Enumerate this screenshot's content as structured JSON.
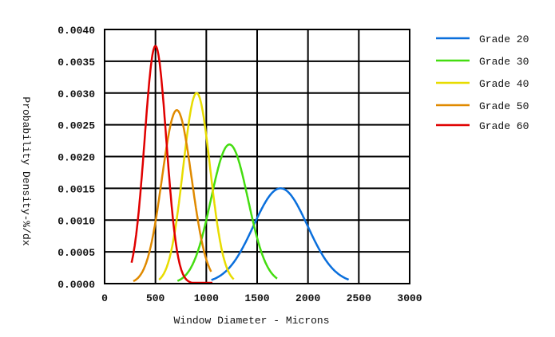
{
  "chart_data": {
    "type": "line",
    "title": "",
    "xlabel": "Window Diameter - Microns",
    "ylabel": "Probability Density-%/dx",
    "xlim": [
      0,
      3000
    ],
    "ylim": [
      0,
      0.004
    ],
    "xticks": [
      0,
      500,
      1000,
      1500,
      2000,
      2500,
      3000
    ],
    "xtick_labels": [
      "0",
      "500",
      "1000",
      "1500",
      "2000",
      "2500",
      "3000"
    ],
    "yticks": [
      0,
      0.0005,
      0.001,
      0.0015,
      0.002,
      0.0025,
      0.003,
      0.0035,
      0.004
    ],
    "ytick_labels": [
      "0.0000",
      "0.0005",
      "0.0010",
      "0.0015",
      "0.0020",
      "0.0025",
      "0.0030",
      "0.0035",
      "0.0040"
    ],
    "grid": true,
    "legend_position": "right",
    "series": [
      {
        "name": "Grade 20",
        "color": "#0a6fdc",
        "distribution": "normal",
        "mean": 1730,
        "peak_density": 0.0015,
        "x_range": [
          1050,
          2400
        ]
      },
      {
        "name": "Grade 30",
        "color": "#44dd10",
        "distribution": "normal",
        "mean": 1228,
        "peak_density": 0.00219,
        "x_range": [
          717,
          1700
        ]
      },
      {
        "name": "Grade 40",
        "color": "#e8dc00",
        "distribution": "normal",
        "mean": 905,
        "peak_density": 0.003,
        "x_range": [
          535,
          1270
        ]
      },
      {
        "name": "Grade 50",
        "color": "#e08a00",
        "distribution": "normal",
        "mean": 710,
        "peak_density": 0.00273,
        "x_range": [
          283,
          1050
        ]
      },
      {
        "name": "Grade 60",
        "color": "#e00000",
        "distribution": "normal",
        "mean": 500,
        "peak_density": 0.00374,
        "x_range": [
          265,
          1060
        ]
      }
    ]
  }
}
